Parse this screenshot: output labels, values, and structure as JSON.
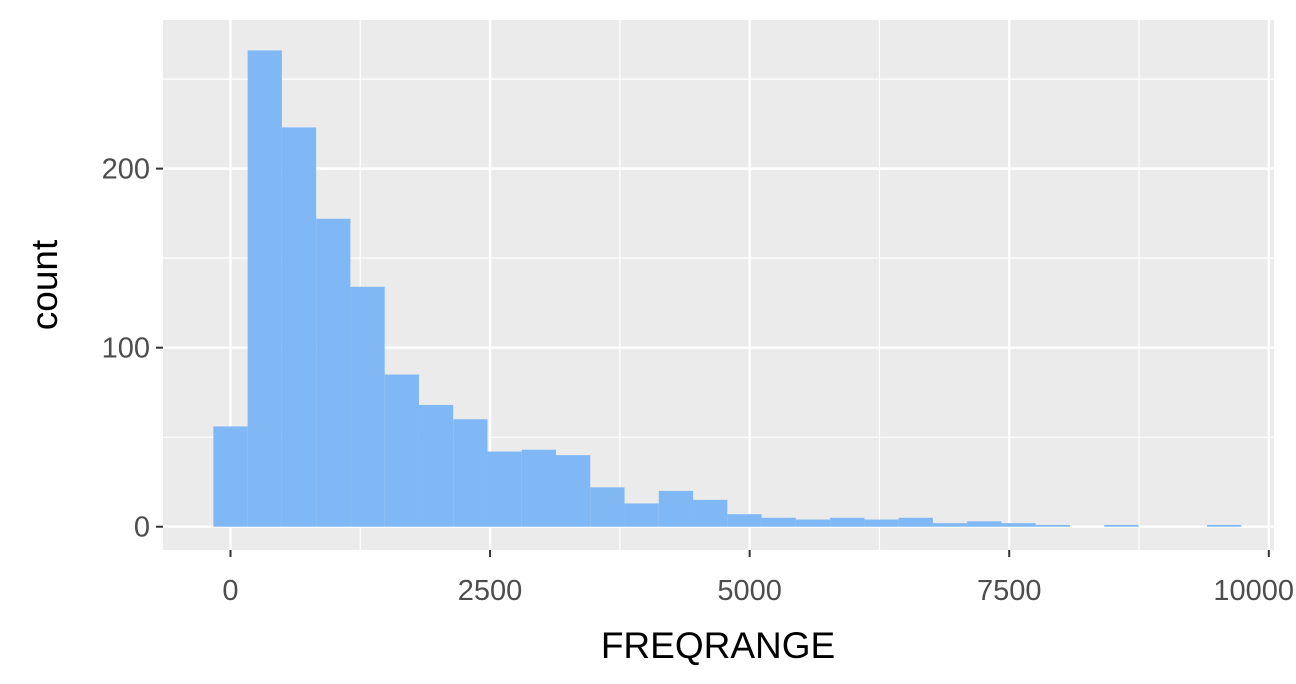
{
  "chart_data": {
    "type": "bar",
    "subtype": "histogram",
    "title": "",
    "xlabel": "FREQRANGE",
    "ylabel": "count",
    "xlim": [
      -650,
      10050
    ],
    "ylim": [
      -13,
      283
    ],
    "x_ticks": [
      0,
      2500,
      5000,
      7500,
      10000
    ],
    "x_tick_labels": [
      "0",
      "2500",
      "5000",
      "7500",
      "10000"
    ],
    "y_ticks": [
      0,
      100,
      200
    ],
    "y_tick_labels": [
      "0",
      "100",
      "200"
    ],
    "grid": true,
    "legend": "none",
    "bin_width": 330,
    "bin_start": -165,
    "counts": [
      56,
      266,
      223,
      172,
      134,
      85,
      68,
      60,
      42,
      43,
      40,
      22,
      13,
      20,
      15,
      7,
      5,
      4,
      5,
      4,
      5,
      2,
      3,
      2,
      1,
      0,
      1,
      0,
      0,
      1
    ],
    "colors": {
      "fill": "#7fb8f5",
      "panel_background": "#ebebeb",
      "grid_major": "#ffffff",
      "tick_text": "#4d4d4d",
      "axis_title": "#000000"
    }
  }
}
